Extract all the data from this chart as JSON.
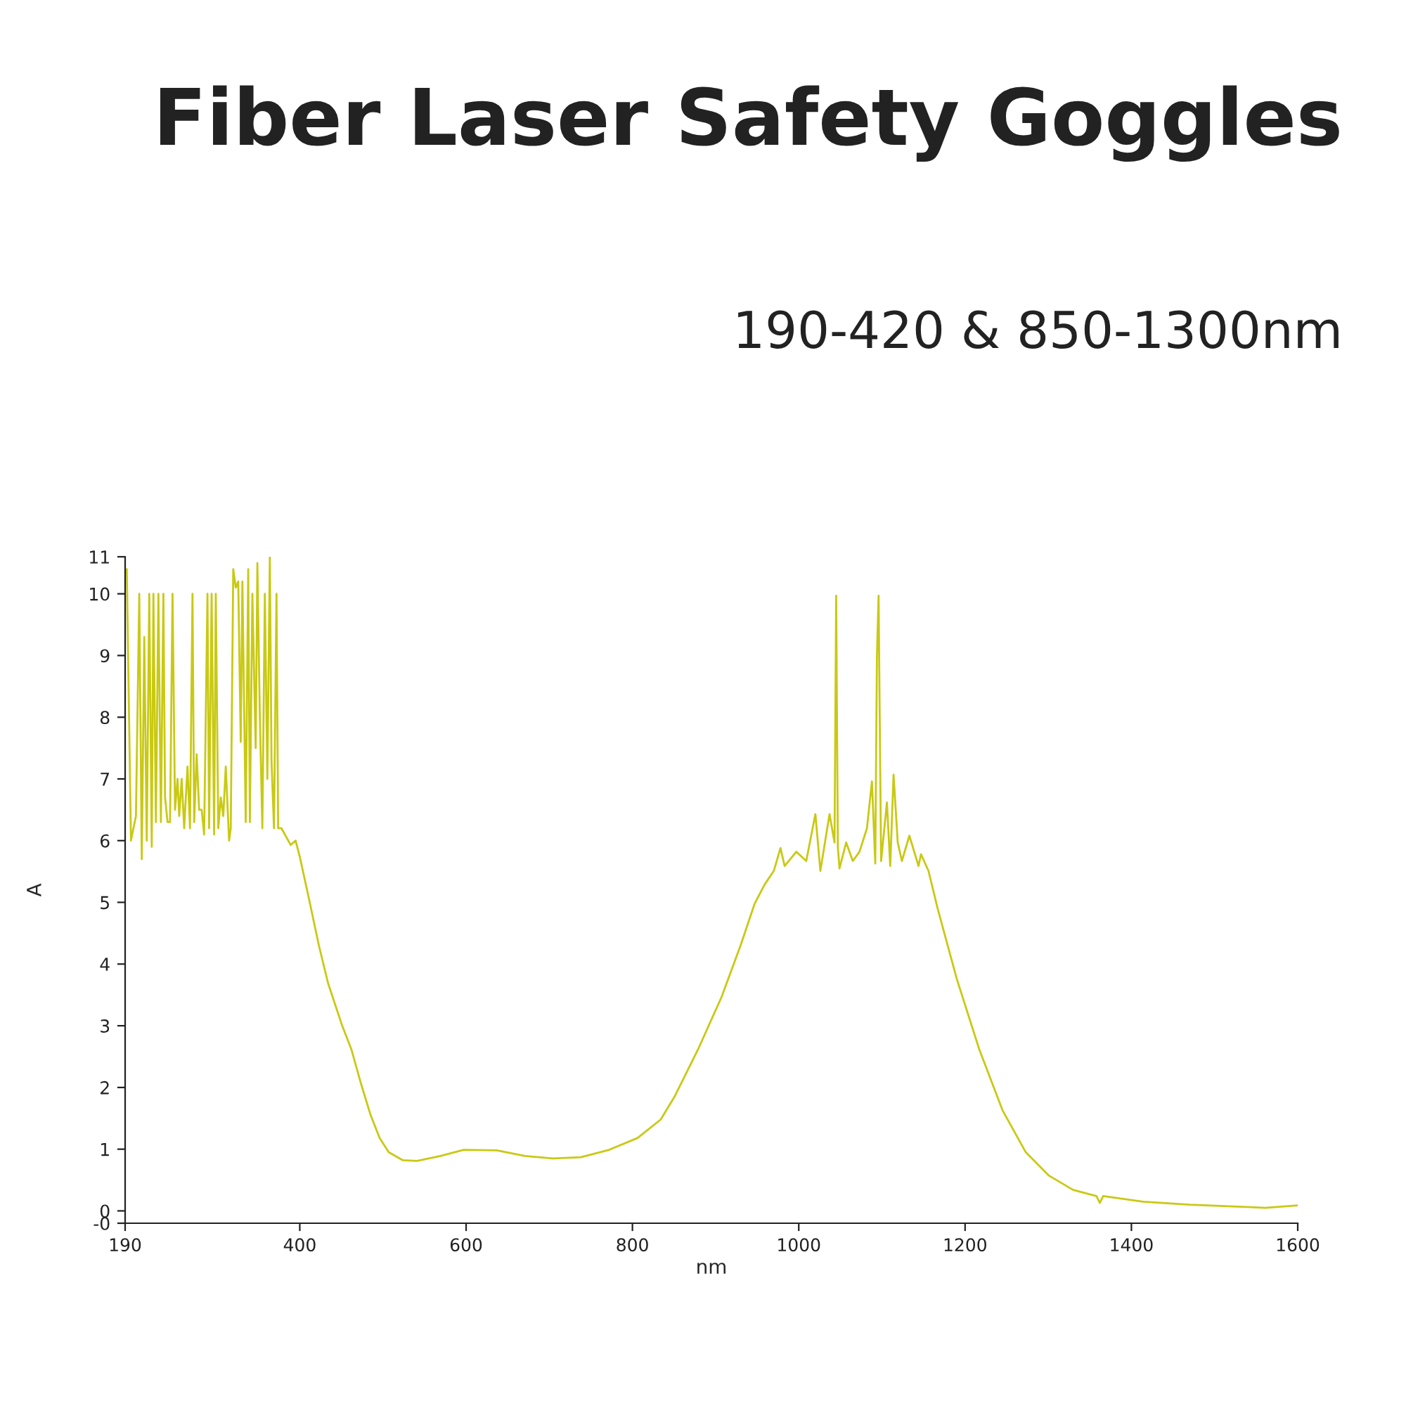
{
  "chart_data": {
    "type": "line",
    "title": "Fiber Laser Safety Goggles",
    "subtitle": "190-420 & 850-1300nm",
    "xlabel": "nm",
    "ylabel": "A",
    "xlim": [
      190,
      1600
    ],
    "xticks": [
      190,
      400,
      600,
      800,
      1000,
      1200,
      1400,
      1600
    ],
    "ylim": [
      -0.2,
      10.6
    ],
    "yticks": [
      {
        "value": -0.2,
        "label": "-0"
      },
      0,
      1,
      2,
      3,
      4,
      5,
      6,
      7,
      8,
      9,
      10,
      {
        "value": 10.6,
        "label": "11"
      }
    ],
    "grid": false,
    "marker": "none",
    "line_style": "solid",
    "series": [
      {
        "color": "#c9c914",
        "x": [
          192,
          197,
          203,
          207,
          210,
          213,
          216,
          219,
          222,
          224,
          227,
          230,
          233,
          236,
          238,
          241,
          244,
          247,
          250,
          253,
          255,
          258,
          261,
          265,
          268,
          271,
          273,
          276,
          279,
          282,
          285,
          289,
          291,
          294,
          297,
          299,
          302,
          305,
          308,
          311,
          315,
          317,
          320,
          323,
          326,
          329,
          331,
          335,
          338,
          340,
          343,
          347,
          349,
          352,
          355,
          358,
          361,
          364,
          366,
          369,
          372,
          374,
          378,
          389,
          395,
          400,
          411,
          423,
          434,
          451,
          462,
          473,
          485,
          496,
          507,
          524,
          541,
          569,
          597,
          637,
          671,
          704,
          738,
          772,
          806,
          834,
          851,
          879,
          907,
          930,
          947,
          959,
          970,
          978,
          983,
          997,
          1009,
          1020,
          1026,
          1037,
          1043,
          1045,
          1047,
          1049,
          1057,
          1065,
          1073,
          1082,
          1088,
          1092,
          1094,
          1096,
          1099,
          1106,
          1110,
          1114,
          1119,
          1124,
          1133,
          1144,
          1147,
          1156,
          1167,
          1190,
          1217,
          1245,
          1273,
          1301,
          1330,
          1358,
          1362,
          1366,
          1414,
          1470,
          1527,
          1561,
          1600
        ],
        "values": [
          10.4,
          6.0,
          6.4,
          10.0,
          5.7,
          9.3,
          6.0,
          10.0,
          5.9,
          10.0,
          6.3,
          10.0,
          6.3,
          10.0,
          6.7,
          6.3,
          6.3,
          10.0,
          6.5,
          7.0,
          6.4,
          7.0,
          6.2,
          7.2,
          6.2,
          10.0,
          6.3,
          7.4,
          6.5,
          6.5,
          6.1,
          10.0,
          6.2,
          10.0,
          6.1,
          10.0,
          6.2,
          6.7,
          6.4,
          7.2,
          6.0,
          6.2,
          10.4,
          10.1,
          10.2,
          7.6,
          10.2,
          6.3,
          10.4,
          6.3,
          10.0,
          7.5,
          10.5,
          8.0,
          6.2,
          10.0,
          7.0,
          10.6,
          7.3,
          6.2,
          10.0,
          6.2,
          6.2,
          5.93,
          6.0,
          5.74,
          5.06,
          4.3,
          3.69,
          3.0,
          2.62,
          2.09,
          1.56,
          1.18,
          0.95,
          0.82,
          0.81,
          0.89,
          0.99,
          0.98,
          0.89,
          0.85,
          0.87,
          0.99,
          1.18,
          1.48,
          1.86,
          2.62,
          3.46,
          4.3,
          4.98,
          5.29,
          5.51,
          5.88,
          5.59,
          5.82,
          5.67,
          6.43,
          5.51,
          6.43,
          5.97,
          9.97,
          5.9,
          5.55,
          5.97,
          5.67,
          5.82,
          6.2,
          6.96,
          5.63,
          8.98,
          9.97,
          5.67,
          6.62,
          5.59,
          7.07,
          5.97,
          5.67,
          6.08,
          5.59,
          5.78,
          5.51,
          4.9,
          3.76,
          2.62,
          1.63,
          0.95,
          0.57,
          0.34,
          0.24,
          0.13,
          0.24,
          0.15,
          0.1,
          0.07,
          0.05,
          0.09
        ]
      }
    ]
  }
}
